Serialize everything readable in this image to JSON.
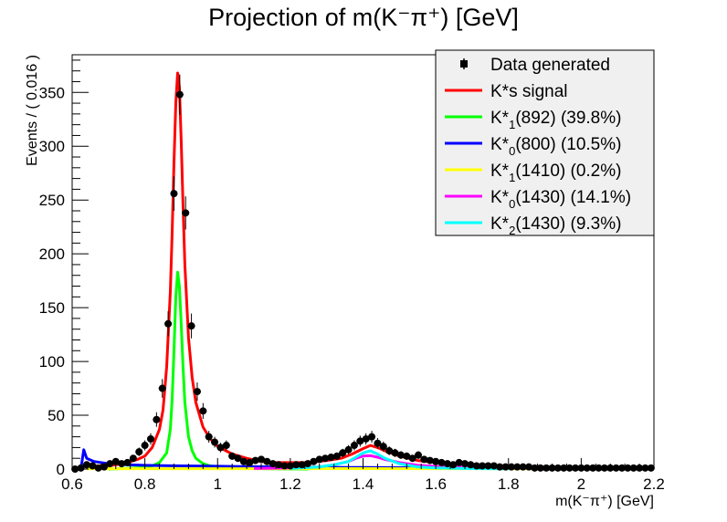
{
  "chart_data": {
    "type": "line",
    "title": "Projection of m(K⁻π⁺) [GeV]",
    "xlabel": "m(K⁻π⁺) [GeV]",
    "ylabel": "Events / ( 0.016 )",
    "xlim": [
      0.6,
      2.2
    ],
    "ylim": [
      0,
      385
    ],
    "x_ticks": [
      "0.6",
      "0.8",
      "1",
      "1.2",
      "1.4",
      "1.6",
      "1.8",
      "2",
      "2.2"
    ],
    "y_ticks": [
      "0",
      "50",
      "100",
      "150",
      "200",
      "250",
      "300",
      "350"
    ],
    "grid": false,
    "legend_position": "top-right",
    "series": [
      {
        "name": "Data generated",
        "kind": "points",
        "color": "#000000",
        "x": [
          0.608,
          0.624,
          0.64,
          0.656,
          0.672,
          0.688,
          0.704,
          0.72,
          0.736,
          0.752,
          0.768,
          0.784,
          0.8,
          0.816,
          0.832,
          0.848,
          0.864,
          0.88,
          0.896,
          0.912,
          0.928,
          0.944,
          0.96,
          0.976,
          0.992,
          1.008,
          1.024,
          1.04,
          1.056,
          1.072,
          1.088,
          1.104,
          1.12,
          1.136,
          1.152,
          1.168,
          1.184,
          1.2,
          1.216,
          1.232,
          1.248,
          1.264,
          1.28,
          1.296,
          1.312,
          1.328,
          1.344,
          1.36,
          1.376,
          1.392,
          1.408,
          1.424,
          1.44,
          1.456,
          1.472,
          1.488,
          1.504,
          1.52,
          1.536,
          1.552,
          1.568,
          1.584,
          1.6,
          1.616,
          1.632,
          1.648,
          1.664,
          1.68,
          1.696,
          1.712,
          1.728,
          1.744,
          1.76,
          1.776,
          1.792,
          1.808,
          1.824,
          1.84,
          1.856,
          1.872,
          1.888,
          1.904,
          1.92,
          1.936,
          1.952,
          1.968,
          1.984,
          2.0,
          2.016,
          2.032,
          2.048,
          2.064,
          2.08,
          2.096,
          2.112,
          2.128,
          2.144,
          2.16,
          2.176,
          2.192
        ],
        "y": [
          0,
          1,
          4,
          3,
          1,
          2,
          5,
          7,
          5,
          6,
          10,
          16,
          22,
          28,
          46,
          75,
          135,
          256,
          348,
          238,
          133,
          72,
          54,
          30,
          25,
          20,
          22,
          12,
          10,
          7,
          6,
          8,
          9,
          7,
          5,
          4,
          3,
          3,
          4,
          4,
          5,
          7,
          9,
          10,
          11,
          12,
          15,
          18,
          22,
          26,
          28,
          30,
          24,
          21,
          17,
          15,
          13,
          12,
          10,
          13,
          9,
          8,
          7,
          6,
          5,
          4,
          6,
          5,
          4,
          3,
          3,
          3,
          3,
          2,
          2,
          2,
          2,
          2,
          2,
          1,
          1,
          1,
          1,
          1,
          1,
          1,
          1,
          1,
          1,
          1,
          1,
          1,
          1,
          1,
          1,
          1,
          1,
          1,
          1,
          1
        ]
      },
      {
        "name": "K*s signal",
        "kind": "curve",
        "color": "#ff0000",
        "x": [
          0.612,
          0.632,
          0.64,
          0.66,
          0.7,
          0.74,
          0.78,
          0.8,
          0.82,
          0.84,
          0.85,
          0.86,
          0.87,
          0.875,
          0.88,
          0.885,
          0.89,
          0.895,
          0.9,
          0.905,
          0.91,
          0.92,
          0.93,
          0.94,
          0.96,
          0.98,
          1.0,
          1.04,
          1.08,
          1.12,
          1.16,
          1.2,
          1.25,
          1.3,
          1.34,
          1.37,
          1.4,
          1.42,
          1.44,
          1.46,
          1.5,
          1.55,
          1.6,
          1.7,
          1.8,
          1.9,
          2.0,
          2.1,
          2.2
        ],
        "y": [
          0,
          2,
          3,
          3,
          3,
          5,
          9,
          12,
          20,
          37,
          55,
          95,
          165,
          220,
          285,
          340,
          368,
          355,
          305,
          245,
          190,
          122,
          85,
          62,
          39,
          28,
          21,
          14,
          10,
          7,
          6,
          6,
          6,
          8,
          10,
          14,
          19,
          22,
          20,
          17,
          12,
          8,
          6,
          4,
          3,
          2,
          1.5,
          1,
          0.8
        ]
      },
      {
        "name": "K*1(892) (39.8%)",
        "kind": "curve",
        "color": "#00ff00",
        "x": [
          0.7,
          0.78,
          0.82,
          0.84,
          0.86,
          0.87,
          0.875,
          0.88,
          0.885,
          0.89,
          0.895,
          0.9,
          0.905,
          0.91,
          0.92,
          0.93,
          0.94,
          0.96,
          0.98,
          1.0,
          1.04,
          1.08,
          1.15,
          1.25
        ],
        "y": [
          0,
          1,
          3,
          6,
          15,
          37,
          65,
          110,
          160,
          183,
          170,
          135,
          95,
          62,
          30,
          17,
          10,
          5,
          3,
          2,
          1,
          0.5,
          0.2,
          0
        ]
      },
      {
        "name": "K*0(800) (10.5%)",
        "kind": "curve",
        "color": "#0000ff",
        "x": [
          0.624,
          0.632,
          0.636,
          0.64,
          0.66,
          0.7,
          0.75,
          0.8,
          0.85,
          0.9,
          1.0,
          1.1,
          1.2,
          1.4,
          1.6,
          1.8,
          2.0,
          2.2
        ],
        "y": [
          0,
          18,
          14,
          10,
          7,
          5,
          4,
          3.5,
          3.2,
          3,
          2.6,
          2.2,
          1.9,
          1.4,
          1,
          0.7,
          0.5,
          0.4
        ]
      },
      {
        "name": "K*1(1410) (0.2%)",
        "kind": "curve",
        "color": "#ffff00",
        "x": [
          0.64,
          1.0,
          1.4,
          1.8,
          2.2
        ],
        "y": [
          0.3,
          0.3,
          0.4,
          0.3,
          0.2
        ]
      },
      {
        "name": "K*0(1430) (14.1%)",
        "kind": "curve",
        "color": "#ff00ff",
        "x": [
          1.1,
          1.2,
          1.28,
          1.32,
          1.36,
          1.38,
          1.4,
          1.42,
          1.44,
          1.46,
          1.5,
          1.55,
          1.6,
          1.7,
          1.8,
          2.0,
          2.2
        ],
        "y": [
          0.5,
          1,
          2,
          4,
          7,
          10,
          12,
          12.5,
          11,
          9,
          6,
          3.5,
          2.5,
          1.5,
          1,
          0.5,
          0.3
        ]
      },
      {
        "name": "K*2(1430) (9.3%)",
        "kind": "curve",
        "color": "#00ffff",
        "x": [
          1.2,
          1.28,
          1.32,
          1.36,
          1.38,
          1.4,
          1.42,
          1.44,
          1.46,
          1.5,
          1.55,
          1.6,
          1.7,
          1.8
        ],
        "y": [
          0.5,
          2,
          4,
          7,
          11,
          15,
          17,
          14,
          10,
          5,
          2,
          1,
          0.4,
          0.2
        ]
      }
    ]
  },
  "legend": [
    {
      "key": "data",
      "pre": "Data generated",
      "sub": "",
      "post": "",
      "color": "#000000",
      "marker": "point"
    },
    {
      "key": "signal",
      "pre": "K*s signal",
      "sub": "",
      "post": "",
      "color": "#ff0000",
      "marker": "line"
    },
    {
      "key": "k892",
      "pre": "K*",
      "sub": "1",
      "post": "(892) (39.8%)",
      "color": "#00ff00",
      "marker": "line"
    },
    {
      "key": "k800",
      "pre": "K*",
      "sub": "0",
      "post": "(800) (10.5%)",
      "color": "#0000ff",
      "marker": "line"
    },
    {
      "key": "k1410",
      "pre": "K*",
      "sub": "1",
      "post": "(1410) (0.2%)",
      "color": "#ffff00",
      "marker": "line"
    },
    {
      "key": "k01430",
      "pre": "K*",
      "sub": "0",
      "post": "(1430) (14.1%)",
      "color": "#ff00ff",
      "marker": "line"
    },
    {
      "key": "k21430",
      "pre": "K*",
      "sub": "2",
      "post": "(1430) (9.3%)",
      "color": "#00ffff",
      "marker": "line"
    }
  ]
}
